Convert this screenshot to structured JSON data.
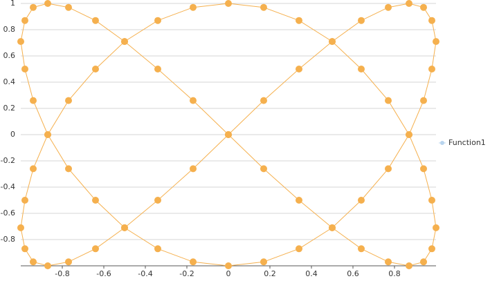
{
  "chart_data": {
    "type": "scatter-line",
    "series": [
      {
        "name": "Function1",
        "color": "#f5b04e",
        "x": [
          0,
          0.17,
          0.34,
          0.5,
          0.64,
          0.77,
          0.87,
          0.94,
          0.98,
          1,
          0.98,
          0.94,
          0.87,
          0.77,
          0.64,
          0.5,
          0.34,
          0.17,
          0,
          -0.17,
          -0.34,
          -0.5,
          -0.64,
          -0.77,
          -0.87,
          -0.94,
          -0.98,
          -1,
          -0.98,
          -0.94,
          -0.87,
          -0.77,
          -0.64,
          -0.5,
          -0.34,
          -0.17,
          0,
          0.17,
          0.34,
          0.5,
          0.64,
          0.77,
          0.87,
          0.94,
          0.98,
          1,
          0.98,
          0.94,
          0.87,
          0.77,
          0.64,
          0.5,
          0.34,
          0.17,
          0,
          -0.17,
          -0.34,
          -0.5,
          -0.64,
          -0.77,
          -0.87,
          -0.94,
          -0.98,
          -1,
          -0.98,
          -0.94,
          -0.87,
          -0.77,
          -0.64,
          -0.5,
          -0.34,
          -0.17,
          0
        ],
        "values": [
          0,
          0.26,
          0.5,
          0.71,
          0.87,
          0.97,
          1,
          0.97,
          0.87,
          0.71,
          0.5,
          0.26,
          0,
          -0.26,
          -0.5,
          -0.71,
          -0.87,
          -0.97,
          -1,
          -0.97,
          -0.87,
          -0.71,
          -0.5,
          -0.26,
          0,
          0.26,
          0.5,
          0.71,
          0.87,
          0.97,
          1,
          0.97,
          0.87,
          0.71,
          0.5,
          0.26,
          0,
          -0.26,
          -0.5,
          -0.71,
          -0.87,
          -0.97,
          -1,
          -0.97,
          -0.87,
          -0.71,
          -0.5,
          -0.26,
          0,
          0.26,
          0.5,
          0.71,
          0.87,
          0.97,
          1,
          0.97,
          0.87,
          0.71,
          0.5,
          0.26,
          0,
          -0.26,
          -0.5,
          -0.71,
          -0.87,
          -0.97,
          -1,
          -0.97,
          -0.87,
          -0.71,
          -0.5,
          -0.26,
          0
        ]
      }
    ],
    "xlim": [
      -1,
      1
    ],
    "xticks": [
      -0.8,
      -0.6,
      -0.4,
      -0.2,
      0,
      0.2,
      0.4,
      0.6,
      0.8
    ],
    "ylim": [
      -1,
      1
    ],
    "yticks": [
      1,
      0.8,
      0.6,
      0.4,
      0.2,
      0,
      -0.2,
      -0.4,
      -0.6,
      -0.8
    ],
    "grid": true
  }
}
